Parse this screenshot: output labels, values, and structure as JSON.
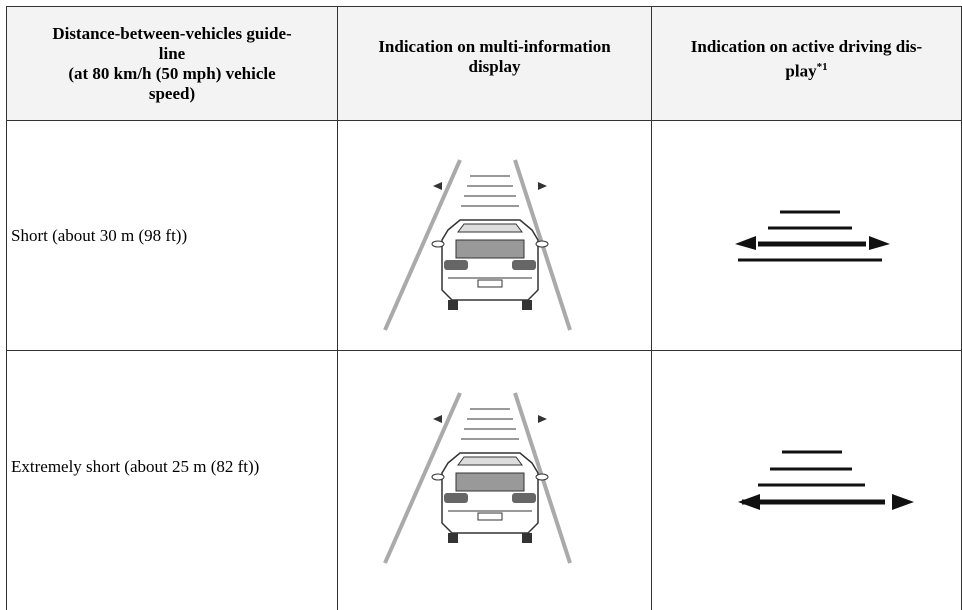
{
  "table": {
    "header": [
      {
        "lines": [
          "Distance-between-vehicles guide-",
          "line",
          "(at 80 km/h (50 mph) vehicle",
          "speed)"
        ]
      },
      {
        "lines": [
          "Indication on multi-information",
          "display"
        ]
      },
      {
        "lines": [
          "Indication on active driving dis-",
          "play"
        ],
        "sup": "*1"
      }
    ],
    "rows": [
      [
        "Short (about 30 m (98 ft))"
      ],
      [
        "Extremely short (about 25 m (82 ft))"
      ]
    ]
  }
}
